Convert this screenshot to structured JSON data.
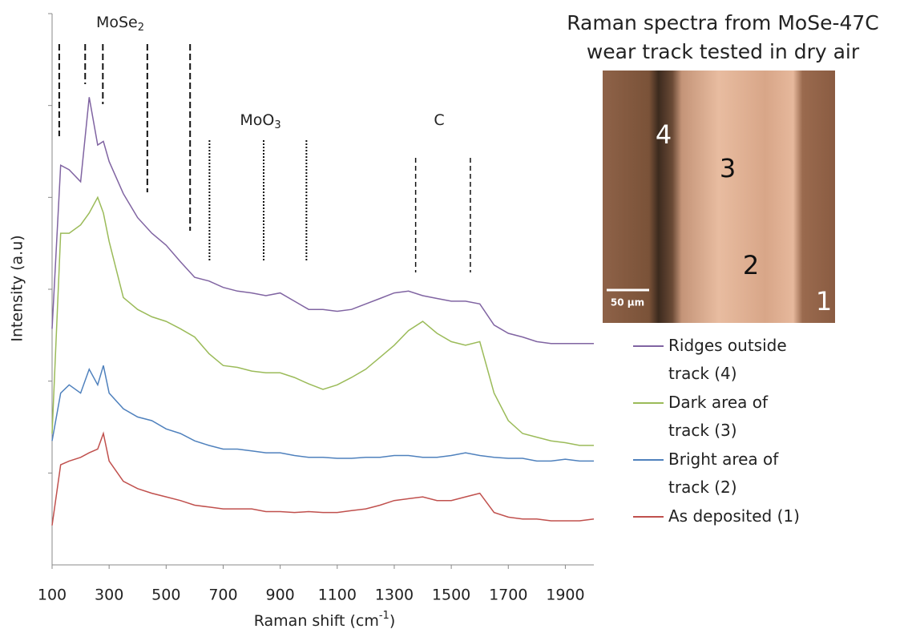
{
  "chart_data": {
    "type": "line",
    "title_lines": [
      "Raman spectra from MoSe-47C",
      "wear track tested in dry air"
    ],
    "xlabel": "Raman shift (cm",
    "xlabel_sup": "-1",
    "xlabel_end": ")",
    "ylabel": "Intensity (a.u)",
    "xlim": [
      100,
      2000
    ],
    "xticks": [
      100,
      300,
      500,
      700,
      900,
      1100,
      1300,
      1500,
      1700,
      1900
    ],
    "ylim": [
      0,
      6
    ],
    "yticks": [
      1,
      2,
      3,
      4,
      5,
      6
    ],
    "x": [
      100,
      130,
      160,
      200,
      230,
      260,
      280,
      300,
      350,
      400,
      450,
      500,
      550,
      600,
      650,
      700,
      750,
      800,
      850,
      900,
      950,
      1000,
      1050,
      1100,
      1150,
      1200,
      1250,
      1300,
      1350,
      1400,
      1450,
      1500,
      1550,
      1600,
      1650,
      1700,
      1750,
      1800,
      1850,
      1900,
      1950,
      2000
    ],
    "series": [
      {
        "name": "Ridges outside track (4)",
        "color": "#8064a2",
        "values": [
          2.57,
          4.35,
          4.3,
          4.17,
          5.09,
          4.57,
          4.61,
          4.39,
          4.04,
          3.78,
          3.61,
          3.48,
          3.3,
          3.13,
          3.09,
          3.02,
          2.98,
          2.96,
          2.93,
          2.96,
          2.87,
          2.78,
          2.78,
          2.76,
          2.78,
          2.84,
          2.9,
          2.96,
          2.98,
          2.93,
          2.9,
          2.87,
          2.87,
          2.84,
          2.61,
          2.52,
          2.48,
          2.43,
          2.41,
          2.41,
          2.41,
          2.41
        ]
      },
      {
        "name": "Dark area of track (3)",
        "color": "#9bbb59",
        "values": [
          1.43,
          3.61,
          3.61,
          3.7,
          3.83,
          4.0,
          3.83,
          3.52,
          2.91,
          2.78,
          2.7,
          2.65,
          2.57,
          2.48,
          2.3,
          2.17,
          2.15,
          2.11,
          2.09,
          2.09,
          2.04,
          1.97,
          1.91,
          1.96,
          2.04,
          2.13,
          2.26,
          2.39,
          2.55,
          2.65,
          2.52,
          2.43,
          2.39,
          2.43,
          1.87,
          1.57,
          1.43,
          1.39,
          1.35,
          1.33,
          1.3,
          1.3
        ]
      },
      {
        "name": "Bright area of track (2)",
        "color": "#4f81bd",
        "values": [
          1.35,
          1.87,
          1.96,
          1.87,
          2.13,
          1.96,
          2.17,
          1.87,
          1.7,
          1.61,
          1.57,
          1.48,
          1.43,
          1.35,
          1.3,
          1.26,
          1.26,
          1.24,
          1.22,
          1.22,
          1.19,
          1.17,
          1.17,
          1.16,
          1.16,
          1.17,
          1.17,
          1.19,
          1.19,
          1.17,
          1.17,
          1.19,
          1.22,
          1.19,
          1.17,
          1.16,
          1.16,
          1.13,
          1.13,
          1.15,
          1.13,
          1.13
        ]
      },
      {
        "name": "As deposited (1)",
        "color": "#c0504d",
        "values": [
          0.43,
          1.09,
          1.13,
          1.17,
          1.22,
          1.26,
          1.43,
          1.13,
          0.91,
          0.83,
          0.78,
          0.74,
          0.7,
          0.65,
          0.63,
          0.61,
          0.61,
          0.61,
          0.58,
          0.58,
          0.57,
          0.58,
          0.57,
          0.57,
          0.59,
          0.61,
          0.65,
          0.7,
          0.72,
          0.74,
          0.7,
          0.7,
          0.74,
          0.78,
          0.57,
          0.52,
          0.5,
          0.5,
          0.48,
          0.48,
          0.48,
          0.5
        ]
      }
    ],
    "reference_groups": [
      {
        "label": "MoSe",
        "label_sub": "2",
        "positions": [
          125,
          216,
          278,
          434,
          584
        ]
      },
      {
        "label": "MoO",
        "label_sub": "3",
        "positions": [
          652,
          842,
          992
        ]
      },
      {
        "label": "C",
        "positions": [
          1375,
          1567
        ]
      }
    ],
    "inset": {
      "labels": [
        "4",
        "3",
        "2",
        "1"
      ],
      "scale_bar": "50 µm"
    }
  }
}
